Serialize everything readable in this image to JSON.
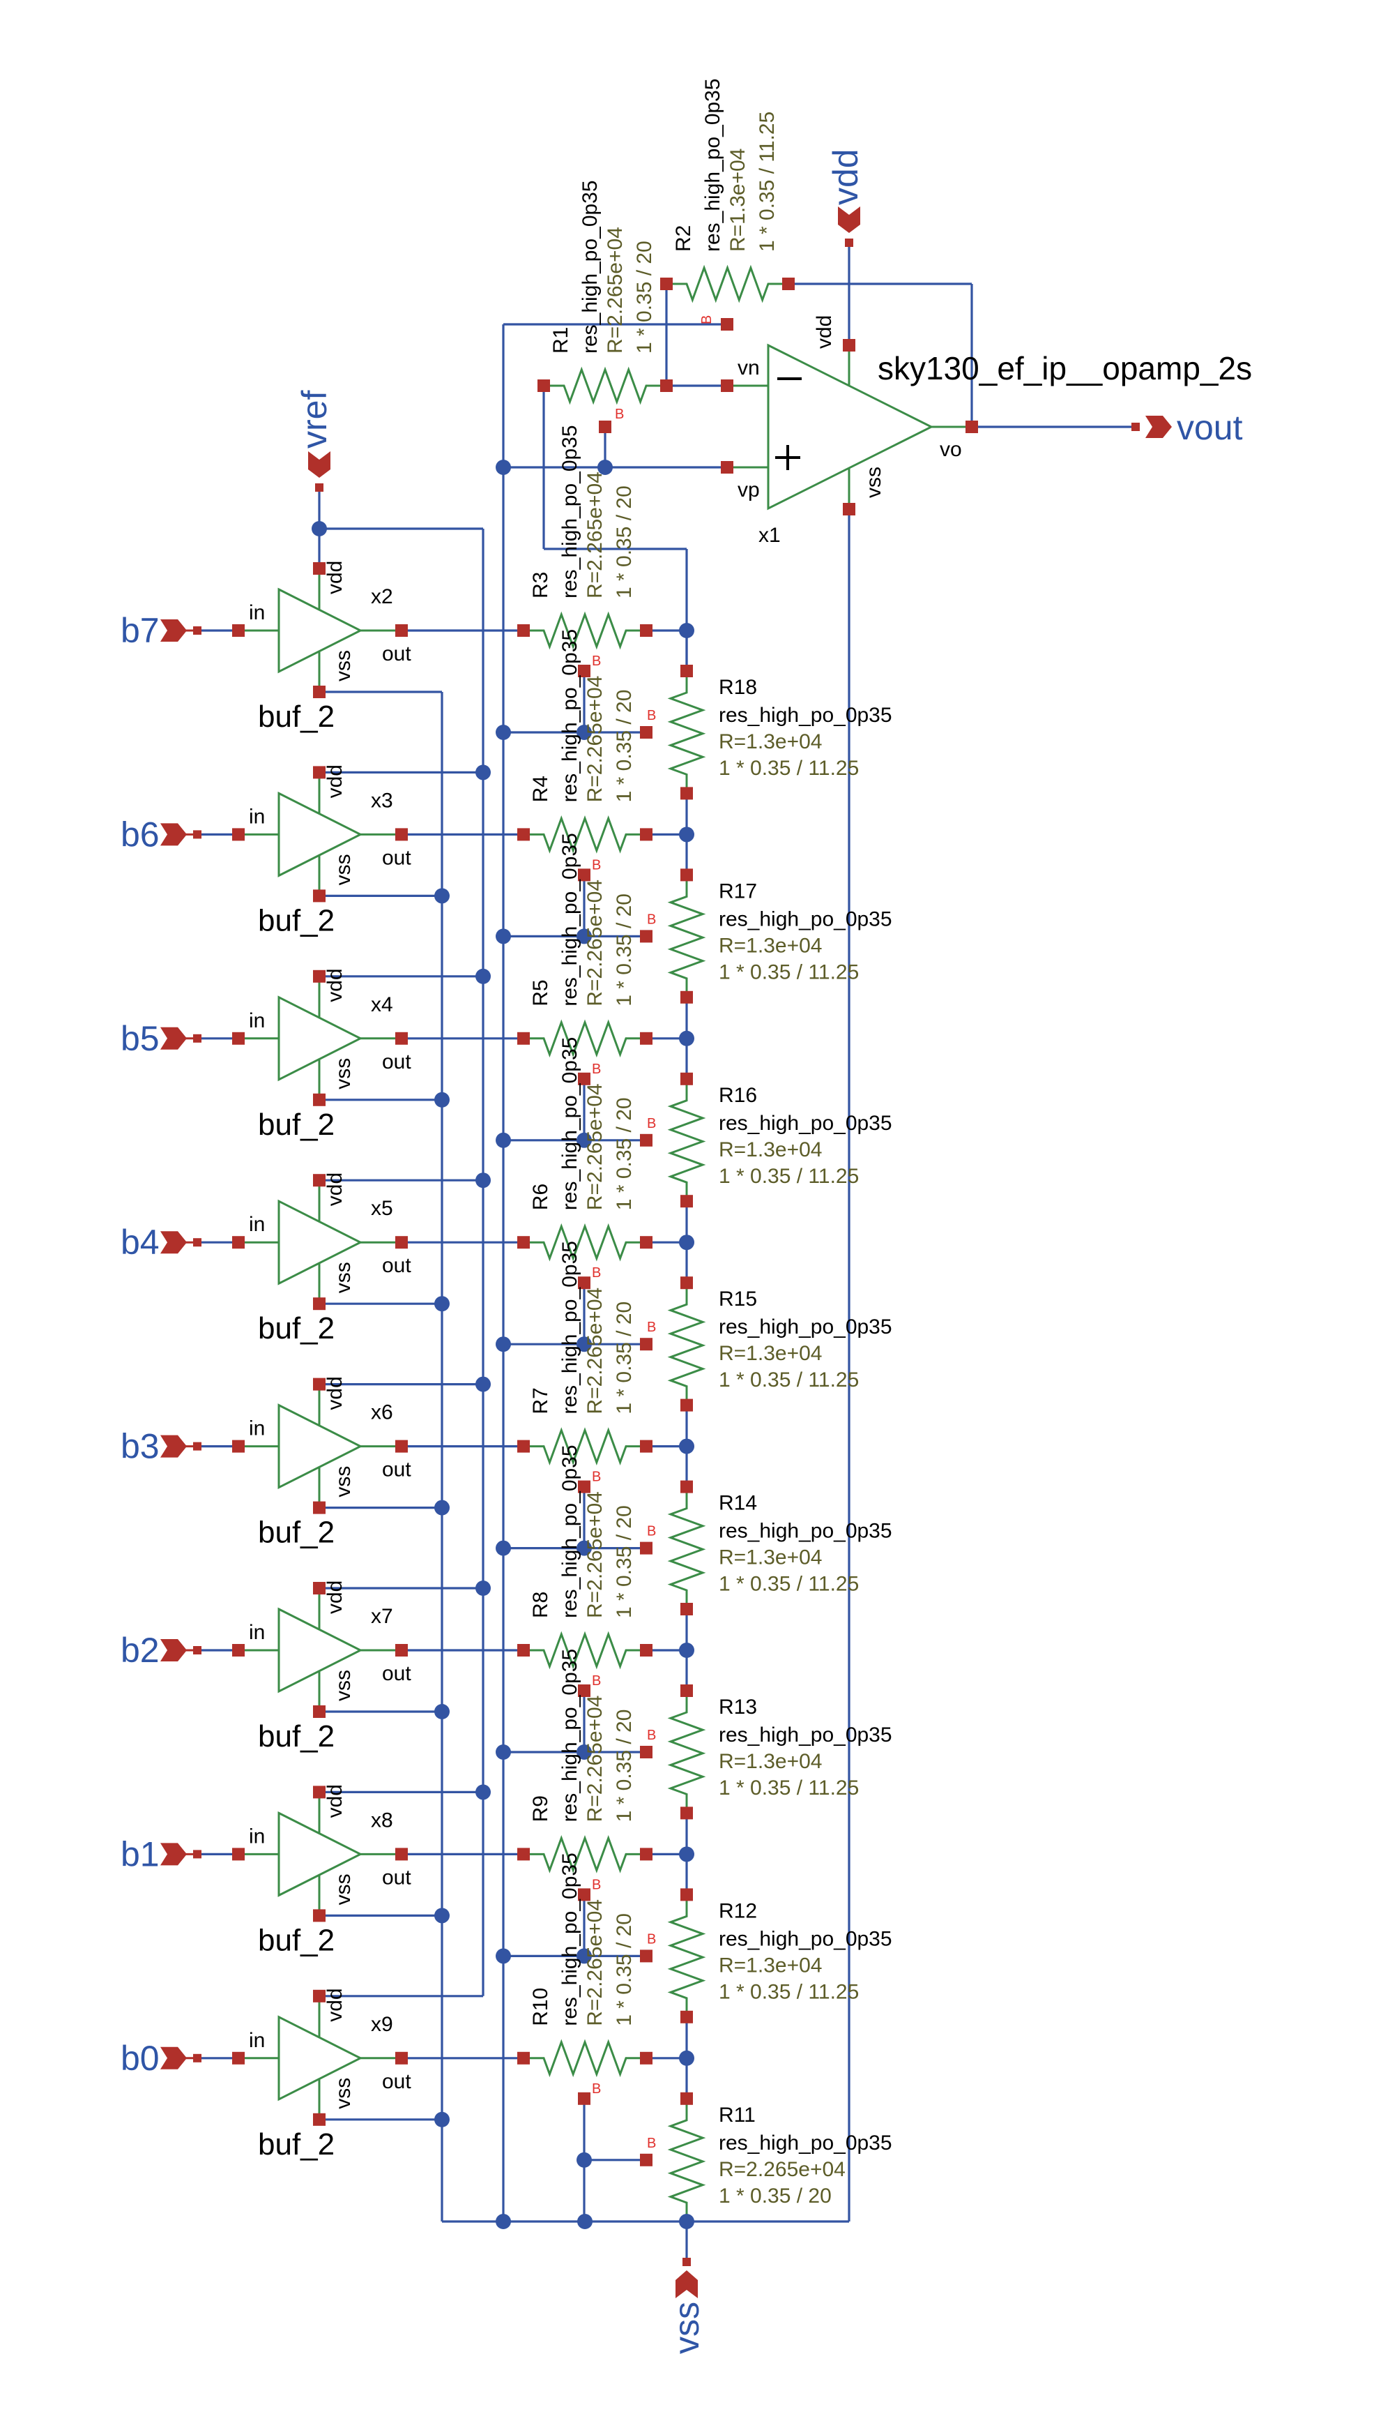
{
  "colors": {
    "wire": "#3354a2",
    "pin": "#b0302a",
    "symbol": "#3b8c47",
    "prop_text": "#5c5c28",
    "pin_label": "#e0302c",
    "port_text": "#2f55a6",
    "label_text": "#000000"
  },
  "ports": {
    "vref": "vref",
    "vdd": "vdd",
    "vss": "vss",
    "vout": "vout"
  },
  "b_pin_label": "B",
  "opamp": {
    "instance": "x1",
    "cell": "sky130_ef_ip__opamp_2s",
    "pins": {
      "vn": "vn",
      "vp": "vp",
      "vo": "vo",
      "vdd": "vdd",
      "vss": "vss"
    }
  },
  "buffer_pins": {
    "in": "in",
    "out": "out",
    "vdd": "vdd",
    "vss": "vss"
  },
  "feedback": [
    {
      "name": "R1",
      "model": "res_high_po_0p35",
      "value": "R=2.265e+04",
      "geom": "1 * 0.35 / 20"
    },
    {
      "name": "R2",
      "model": "res_high_po_0p35",
      "value": "R=1.3e+04",
      "geom": "1 * 0.35 / 11.25"
    }
  ],
  "stages": [
    {
      "bit": "b7",
      "buffer": "x2",
      "cell": "buf_2",
      "series": {
        "name": "R3",
        "model": "res_high_po_0p35",
        "value": "R=2.265e+04",
        "geom": "1 * 0.35 / 20"
      },
      "ladder": {
        "name": "R18",
        "model": "res_high_po_0p35",
        "value": "R=1.3e+04",
        "geom": "1 * 0.35 / 11.25"
      }
    },
    {
      "bit": "b6",
      "buffer": "x3",
      "cell": "buf_2",
      "series": {
        "name": "R4",
        "model": "res_high_po_0p35",
        "value": "R=2.265e+04",
        "geom": "1 * 0.35 / 20"
      },
      "ladder": {
        "name": "R17",
        "model": "res_high_po_0p35",
        "value": "R=1.3e+04",
        "geom": "1 * 0.35 / 11.25"
      }
    },
    {
      "bit": "b5",
      "buffer": "x4",
      "cell": "buf_2",
      "series": {
        "name": "R5",
        "model": "res_high_po_0p35",
        "value": "R=2.265e+04",
        "geom": "1 * 0.35 / 20"
      },
      "ladder": {
        "name": "R16",
        "model": "res_high_po_0p35",
        "value": "R=1.3e+04",
        "geom": "1 * 0.35 / 11.25"
      }
    },
    {
      "bit": "b4",
      "buffer": "x5",
      "cell": "buf_2",
      "series": {
        "name": "R6",
        "model": "res_high_po_0p35",
        "value": "R=2.265e+04",
        "geom": "1 * 0.35 / 20"
      },
      "ladder": {
        "name": "R15",
        "model": "res_high_po_0p35",
        "value": "R=1.3e+04",
        "geom": "1 * 0.35 / 11.25"
      }
    },
    {
      "bit": "b3",
      "buffer": "x6",
      "cell": "buf_2",
      "series": {
        "name": "R7",
        "model": "res_high_po_0p35",
        "value": "R=2.265e+04",
        "geom": "1 * 0.35 / 20"
      },
      "ladder": {
        "name": "R14",
        "model": "res_high_po_0p35",
        "value": "R=1.3e+04",
        "geom": "1 * 0.35 / 11.25"
      }
    },
    {
      "bit": "b2",
      "buffer": "x7",
      "cell": "buf_2",
      "series": {
        "name": "R8",
        "model": "res_high_po_0p35",
        "value": "R=2.265e+04",
        "geom": "1 * 0.35 / 20"
      },
      "ladder": {
        "name": "R13",
        "model": "res_high_po_0p35",
        "value": "R=1.3e+04",
        "geom": "1 * 0.35 / 11.25"
      }
    },
    {
      "bit": "b1",
      "buffer": "x8",
      "cell": "buf_2",
      "series": {
        "name": "R9",
        "model": "res_high_po_0p35",
        "value": "R=2.265e+04",
        "geom": "1 * 0.35 / 20"
      },
      "ladder": {
        "name": "R12",
        "model": "res_high_po_0p35",
        "value": "R=1.3e+04",
        "geom": "1 * 0.35 / 11.25"
      }
    },
    {
      "bit": "b0",
      "buffer": "x9",
      "cell": "buf_2",
      "series": {
        "name": "R10",
        "model": "res_high_po_0p35",
        "value": "R=2.265e+04",
        "geom": "1 * 0.35 / 20"
      },
      "ladder": {
        "name": "R11",
        "model": "res_high_po_0p35",
        "value": "R=2.265e+04",
        "geom": "1 * 0.35 / 20"
      }
    }
  ]
}
